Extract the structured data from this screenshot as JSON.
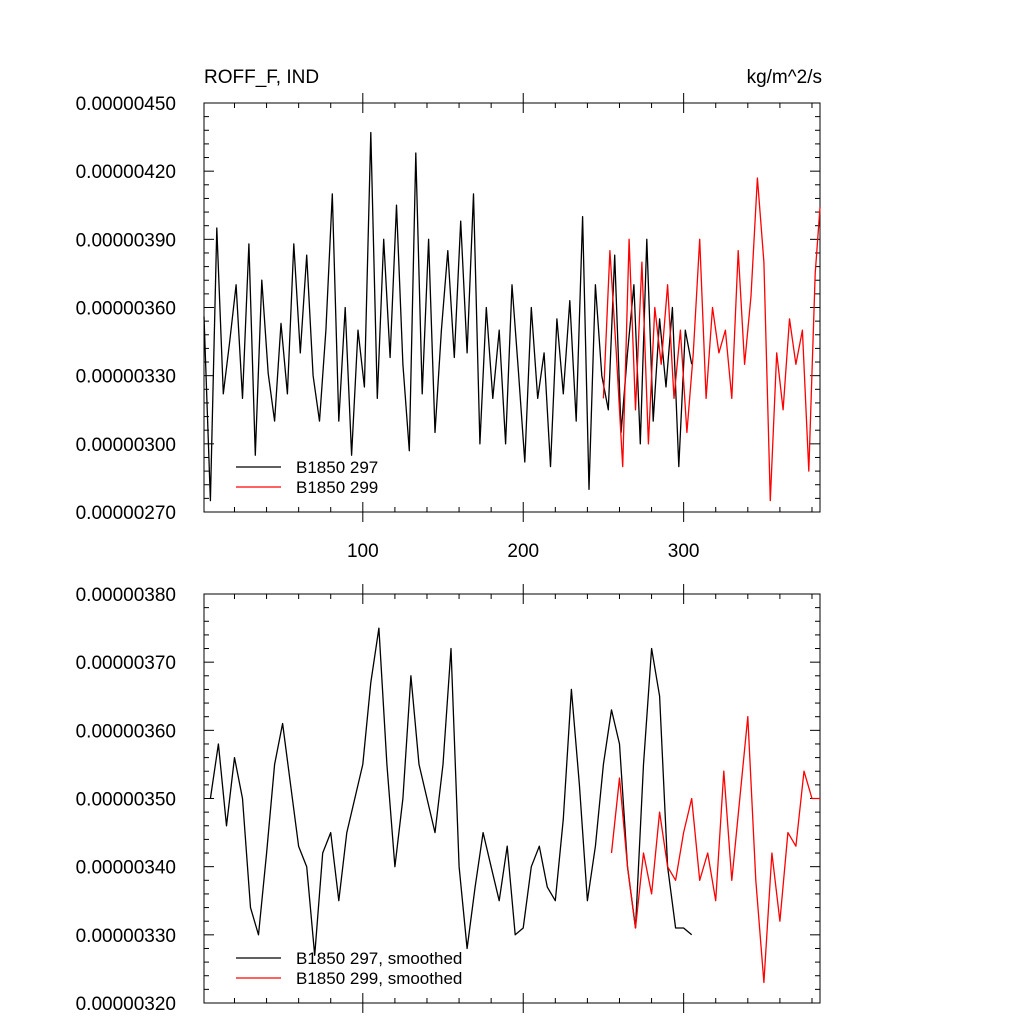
{
  "chart_data": [
    {
      "type": "line",
      "title_left": "ROFF_F, IND",
      "title_right": "kg/m^2/s",
      "ylim": [
        2.7e-06,
        4.5e-06
      ],
      "xlim": [
        1,
        385
      ],
      "yticks": [
        2.7e-06,
        3e-06,
        3.3e-06,
        3.6e-06,
        3.9e-06,
        4.2e-06,
        4.5e-06
      ],
      "ytick_labels": [
        "0.00000270",
        "0.00000300",
        "0.00000330",
        "0.00000360",
        "0.00000390",
        "0.00000420",
        "0.00000450"
      ],
      "xticks": [
        100,
        200,
        300
      ],
      "xtick_labels": [
        "100",
        "200",
        "300"
      ],
      "legend": {
        "placement": "bottom-left"
      },
      "series": [
        {
          "name": "B1850 297",
          "color": "#000000",
          "x": [
            1,
            5,
            9,
            13,
            17,
            21,
            25,
            29,
            33,
            37,
            41,
            45,
            49,
            53,
            57,
            61,
            65,
            69,
            73,
            77,
            81,
            85,
            89,
            93,
            97,
            101,
            105,
            109,
            113,
            117,
            121,
            125,
            129,
            133,
            137,
            141,
            145,
            149,
            153,
            157,
            161,
            165,
            169,
            173,
            177,
            181,
            185,
            189,
            193,
            197,
            201,
            205,
            209,
            213,
            217,
            221,
            225,
            229,
            233,
            237,
            241,
            245,
            249,
            253,
            257,
            261,
            265,
            269,
            273,
            277,
            281,
            285,
            289,
            293,
            297,
            301,
            305
          ],
          "y": [
            3.56e-06,
            2.75e-06,
            3.95e-06,
            3.22e-06,
            3.45e-06,
            3.7e-06,
            3.2e-06,
            3.88e-06,
            2.95e-06,
            3.72e-06,
            3.31e-06,
            3.1e-06,
            3.53e-06,
            3.22e-06,
            3.88e-06,
            3.4e-06,
            3.83e-06,
            3.3e-06,
            3.1e-06,
            3.5e-06,
            4.1e-06,
            3.1e-06,
            3.6e-06,
            2.95e-06,
            3.5e-06,
            3.25e-06,
            4.37e-06,
            3.2e-06,
            3.9e-06,
            3.38e-06,
            4.05e-06,
            3.35e-06,
            2.97e-06,
            4.28e-06,
            3.22e-06,
            3.9e-06,
            3.05e-06,
            3.5e-06,
            3.85e-06,
            3.38e-06,
            3.98e-06,
            3.4e-06,
            4.1e-06,
            3e-06,
            3.6e-06,
            3.2e-06,
            3.5e-06,
            3e-06,
            3.7e-06,
            3.32e-06,
            2.92e-06,
            3.6e-06,
            3.2e-06,
            3.4e-06,
            2.9e-06,
            3.55e-06,
            3.22e-06,
            3.63e-06,
            3.1e-06,
            4e-06,
            2.8e-06,
            3.7e-06,
            3.3e-06,
            3.15e-06,
            3.83e-06,
            3.05e-06,
            3.4e-06,
            3.7e-06,
            3e-06,
            3.9e-06,
            3.1e-06,
            3.55e-06,
            3.25e-06,
            3.6e-06,
            2.9e-06,
            3.5e-06,
            3.35e-06
          ]
        },
        {
          "name": "B1850 299",
          "color": "#ff0000",
          "x": [
            250,
            254,
            258,
            262,
            266,
            270,
            274,
            278,
            282,
            286,
            290,
            294,
            298,
            302,
            306,
            310,
            314,
            318,
            322,
            326,
            330,
            334,
            338,
            342,
            346,
            350,
            354,
            358,
            362,
            366,
            370,
            374,
            378,
            382,
            385
          ],
          "y": [
            3.2e-06,
            3.85e-06,
            3.4e-06,
            2.9e-06,
            3.9e-06,
            3.15e-06,
            3.8e-06,
            3e-06,
            3.6e-06,
            3.35e-06,
            3.7e-06,
            3.2e-06,
            3.5e-06,
            3.05e-06,
            3.4e-06,
            3.9e-06,
            3.2e-06,
            3.6e-06,
            3.4e-06,
            3.5e-06,
            3.2e-06,
            3.85e-06,
            3.35e-06,
            3.65e-06,
            4.17e-06,
            3.8e-06,
            2.75e-06,
            3.4e-06,
            3.15e-06,
            3.55e-06,
            3.35e-06,
            3.5e-06,
            2.88e-06,
            3.75e-06,
            4.04e-06
          ]
        }
      ]
    },
    {
      "type": "line",
      "ylim": [
        3.2e-06,
        3.8e-06
      ],
      "xlim": [
        1,
        385
      ],
      "yticks": [
        3.2e-06,
        3.3e-06,
        3.4e-06,
        3.5e-06,
        3.6e-06,
        3.7e-06,
        3.8e-06
      ],
      "ytick_labels": [
        "0.00000320",
        "0.00000330",
        "0.00000340",
        "0.00000350",
        "0.00000360",
        "0.00000370",
        "0.00000380"
      ],
      "xticks": [
        100,
        200,
        300
      ],
      "legend": {
        "placement": "bottom-left"
      },
      "series": [
        {
          "name": "B1850 297, smoothed",
          "color": "#000000",
          "x": [
            5,
            10,
            15,
            20,
            25,
            30,
            35,
            40,
            45,
            50,
            55,
            60,
            65,
            70,
            75,
            80,
            85,
            90,
            95,
            100,
            105,
            110,
            115,
            120,
            125,
            130,
            135,
            140,
            145,
            150,
            155,
            160,
            165,
            170,
            175,
            180,
            185,
            190,
            195,
            200,
            205,
            210,
            215,
            220,
            225,
            230,
            235,
            240,
            245,
            250,
            255,
            260,
            265,
            270,
            275,
            280,
            285,
            290,
            295,
            300,
            305
          ],
          "y": [
            3.5e-06,
            3.58e-06,
            3.46e-06,
            3.56e-06,
            3.5e-06,
            3.34e-06,
            3.3e-06,
            3.42e-06,
            3.55e-06,
            3.61e-06,
            3.52e-06,
            3.43e-06,
            3.4e-06,
            3.27e-06,
            3.42e-06,
            3.45e-06,
            3.35e-06,
            3.45e-06,
            3.5e-06,
            3.55e-06,
            3.67e-06,
            3.75e-06,
            3.55e-06,
            3.4e-06,
            3.5e-06,
            3.68e-06,
            3.55e-06,
            3.5e-06,
            3.45e-06,
            3.55e-06,
            3.72e-06,
            3.4e-06,
            3.28e-06,
            3.37e-06,
            3.45e-06,
            3.4e-06,
            3.35e-06,
            3.43e-06,
            3.3e-06,
            3.31e-06,
            3.4e-06,
            3.43e-06,
            3.37e-06,
            3.35e-06,
            3.47e-06,
            3.66e-06,
            3.52e-06,
            3.35e-06,
            3.43e-06,
            3.55e-06,
            3.63e-06,
            3.58e-06,
            3.4e-06,
            3.31e-06,
            3.55e-06,
            3.72e-06,
            3.65e-06,
            3.4e-06,
            3.31e-06,
            3.31e-06,
            3.3e-06
          ]
        },
        {
          "name": "B1850 299, smoothed",
          "color": "#ff0000",
          "x": [
            255,
            260,
            265,
            270,
            275,
            280,
            285,
            290,
            295,
            300,
            305,
            310,
            315,
            320,
            325,
            330,
            335,
            340,
            345,
            350,
            355,
            360,
            365,
            370,
            375,
            380,
            385
          ],
          "y": [
            3.42e-06,
            3.53e-06,
            3.4e-06,
            3.31e-06,
            3.42e-06,
            3.36e-06,
            3.48e-06,
            3.4e-06,
            3.38e-06,
            3.45e-06,
            3.5e-06,
            3.38e-06,
            3.42e-06,
            3.35e-06,
            3.54e-06,
            3.38e-06,
            3.5e-06,
            3.62e-06,
            3.38e-06,
            3.23e-06,
            3.42e-06,
            3.32e-06,
            3.45e-06,
            3.43e-06,
            3.54e-06,
            3.5e-06,
            3.5e-06
          ]
        }
      ]
    }
  ]
}
